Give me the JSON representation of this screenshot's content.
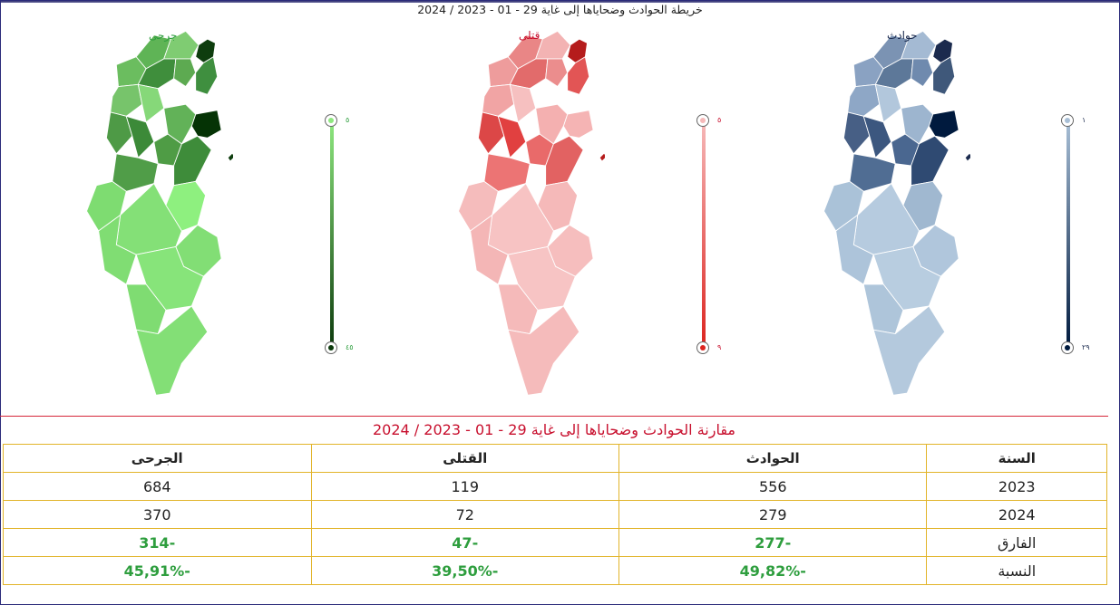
{
  "title": "خريطة الحوادث وضحاياها إلى غاية 29 - 01 - 2023 / 2024",
  "maps": [
    {
      "key": "accidents",
      "label": "حوادث",
      "label_color": "#1b2a4e",
      "min": "١",
      "max": "٢٩",
      "fills": [
        "#7b93b3",
        "#a4bad3",
        "#8aa2c2",
        "#5d7899",
        "#6f8aae",
        "#1b2a4e",
        "#3f587a",
        "#8ea7c6",
        "#b2c7dc",
        "#475f85",
        "#3c577f",
        "#4a6790",
        "#2f4a72",
        "#001a3e",
        "#9db5cf",
        "#506d93",
        "#a0b8d0",
        "#aac2d8",
        "#b6cbdf",
        "#adc4da",
        "#b0c6dc",
        "#b8cde0",
        "#aec5da",
        "#b4c9dd"
      ],
      "gradient": [
        "#a8bfd6",
        "#001a3e"
      ]
    },
    {
      "key": "deaths",
      "label": "قتلى",
      "label_color": "#c8102e",
      "min": "٥",
      "max": "٩",
      "fills": [
        "#e98686",
        "#f3b3b3",
        "#ee9c9c",
        "#e26b6b",
        "#eb8d8d",
        "#b51c1c",
        "#e25555",
        "#f1a4a4",
        "#f6c0c0",
        "#dc4747",
        "#e14040",
        "#e96a6a",
        "#e26262",
        "#f5b4b4",
        "#f4b0b0",
        "#ec7474",
        "#f5b9b9",
        "#f5bcbc",
        "#f7c3c3",
        "#f4b6b6",
        "#f6bebe",
        "#f7c4c4",
        "#f5baba",
        "#f5bbbb"
      ],
      "gradient": [
        "#f6b9b9",
        "#dc241f"
      ]
    },
    {
      "key": "injured",
      "label": "جرحى",
      "label_color": "#2e9e3e",
      "min": "٥",
      "max": "٤٥",
      "fills": [
        "#5fb456",
        "#7fcc72",
        "#6bbd5f",
        "#3f8e3c",
        "#5daa51",
        "#0e3d0e",
        "#3f8f3f",
        "#77c46b",
        "#86d879",
        "#4e9a46",
        "#3c8a38",
        "#4f9c45",
        "#3e8c3a",
        "#053305",
        "#62b258",
        "#509d48",
        "#8ef07f",
        "#7edc71",
        "#84e077",
        "#80dd73",
        "#82de75",
        "#87e47a",
        "#7fdc72",
        "#83df76"
      ],
      "gradient": [
        "#8ee87f",
        "#0c3a0c"
      ]
    }
  ],
  "table": {
    "title": "مقارنة الحوادث وضحاياها إلى غاية 29 - 01 - 2023 / 2024",
    "headers": [
      "السنة",
      "الحوادث",
      "القتلى",
      "الجرحى"
    ],
    "rows": [
      [
        "2023",
        "556",
        "119",
        "684"
      ],
      [
        "2024",
        "279",
        "72",
        "370"
      ],
      [
        "الفارق",
        "-277",
        "-47",
        "-314"
      ],
      [
        "النسبة",
        "-49,82%",
        "-39,50%",
        "-45,91%"
      ]
    ]
  }
}
